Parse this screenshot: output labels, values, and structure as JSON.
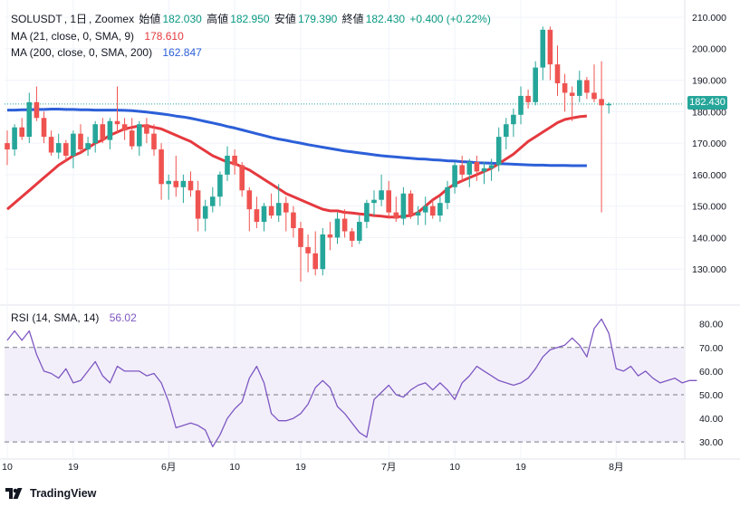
{
  "legend": {
    "symbol": "SOLUSDT",
    "interval": "1日",
    "exchange": "Zoomex",
    "open_label": "始値",
    "open": "182.030",
    "high_label": "高値",
    "high": "182.950",
    "low_label": "安値",
    "low": "179.390",
    "close_label": "終値",
    "close": "182.430",
    "change": "+0.400 (+0.22%)",
    "ma21_label": "MA (21, close, 0, SMA, 9)",
    "ma21_value": "178.610",
    "ma200_label": "MA (200, close, 0, SMA, 200)",
    "ma200_value": "162.847",
    "rsi_label": "RSI (14, SMA, 14)",
    "rsi_value": "56.02"
  },
  "price_tag": "182.430",
  "branding": {
    "text": "TradingView"
  },
  "colors": {
    "up": "#26a69a",
    "down": "#ef5350",
    "ma21": "#e5393f",
    "ma200": "#2c5fd8",
    "rsi": "#7e57c2",
    "rsi_band": "#f2effa"
  },
  "chart_data": [
    {
      "type": "candlestick",
      "title": "SOLUSDT, 1日, Zoomex",
      "y_ticks": [
        "210.000",
        "200.000",
        "190.000",
        "180.000",
        "170.000",
        "160.000",
        "150.000",
        "140.000",
        "130.000"
      ],
      "ylim": [
        120,
        212
      ],
      "x_ticks": [
        {
          "label": "10",
          "index": 0
        },
        {
          "label": "19",
          "index": 9
        },
        {
          "label": "6月",
          "index": 22
        },
        {
          "label": "10",
          "index": 31
        },
        {
          "label": "19",
          "index": 40
        },
        {
          "label": "7月",
          "index": 52
        },
        {
          "label": "10",
          "index": 61
        },
        {
          "label": "19",
          "index": 70
        },
        {
          "label": "8月",
          "index": 83
        }
      ],
      "last_price": 182.43,
      "candles": [
        [
          170,
          174,
          163,
          168
        ],
        [
          168,
          176,
          166,
          175
        ],
        [
          175,
          178,
          171,
          172
        ],
        [
          172,
          186,
          170,
          183
        ],
        [
          183,
          188,
          177,
          178
        ],
        [
          178,
          180,
          170,
          172
        ],
        [
          172,
          174,
          166,
          167
        ],
        [
          167,
          173,
          165,
          170
        ],
        [
          170,
          171,
          164,
          166
        ],
        [
          166,
          174,
          162,
          173
        ],
        [
          173,
          176,
          167,
          168
        ],
        [
          168,
          172,
          166,
          170
        ],
        [
          170,
          177,
          167,
          176
        ],
        [
          176,
          178,
          170,
          171
        ],
        [
          171,
          178,
          168,
          177
        ],
        [
          177,
          188,
          173,
          176
        ],
        [
          176,
          178,
          171,
          174
        ],
        [
          174,
          178,
          168,
          169
        ],
        [
          169,
          177,
          166,
          176
        ],
        [
          176,
          178,
          170,
          173
        ],
        [
          173,
          176,
          166,
          168
        ],
        [
          168,
          170,
          152,
          157
        ],
        [
          157,
          160,
          152,
          158
        ],
        [
          158,
          166,
          153,
          156
        ],
        [
          156,
          160,
          151,
          158
        ],
        [
          158,
          161,
          153,
          155
        ],
        [
          155,
          158,
          142,
          146
        ],
        [
          146,
          152,
          142,
          150
        ],
        [
          150,
          156,
          148,
          153
        ],
        [
          153,
          161,
          150,
          160
        ],
        [
          160,
          169,
          158,
          166
        ],
        [
          166,
          168,
          160,
          163
        ],
        [
          163,
          164,
          153,
          155
        ],
        [
          155,
          156,
          142,
          149
        ],
        [
          149,
          153,
          143,
          145
        ],
        [
          145,
          151,
          142,
          150
        ],
        [
          150,
          154,
          146,
          147
        ],
        [
          147,
          157,
          145,
          151
        ],
        [
          151,
          153,
          142,
          148
        ],
        [
          148,
          150,
          140,
          143
        ],
        [
          143,
          145,
          126,
          137
        ],
        [
          137,
          141,
          129,
          135
        ],
        [
          135,
          142,
          128,
          130
        ],
        [
          130,
          143,
          128,
          141
        ],
        [
          141,
          145,
          136,
          140
        ],
        [
          140,
          148,
          138,
          146
        ],
        [
          146,
          149,
          140,
          142
        ],
        [
          142,
          143,
          137,
          139
        ],
        [
          139,
          147,
          138,
          145
        ],
        [
          145,
          152,
          143,
          151
        ],
        [
          151,
          155,
          147,
          152
        ],
        [
          152,
          160,
          150,
          155
        ],
        [
          155,
          158,
          146,
          148
        ],
        [
          148,
          153,
          145,
          146
        ],
        [
          146,
          156,
          144,
          154
        ],
        [
          154,
          155,
          146,
          147
        ],
        [
          147,
          150,
          144,
          148
        ],
        [
          148,
          153,
          144,
          150
        ],
        [
          150,
          152,
          146,
          147
        ],
        [
          147,
          153,
          145,
          151
        ],
        [
          151,
          158,
          149,
          156
        ],
        [
          156,
          164,
          154,
          163
        ],
        [
          163,
          166,
          158,
          160
        ],
        [
          160,
          165,
          156,
          164
        ],
        [
          164,
          166,
          158,
          161
        ],
        [
          161,
          164,
          157,
          162
        ],
        [
          162,
          165,
          158,
          163
        ],
        [
          163,
          175,
          161,
          172
        ],
        [
          172,
          178,
          168,
          176
        ],
        [
          176,
          181,
          172,
          179
        ],
        [
          179,
          188,
          176,
          185
        ],
        [
          185,
          187,
          181,
          183
        ],
        [
          183,
          196,
          182,
          194
        ],
        [
          194,
          207,
          190,
          206
        ],
        [
          206,
          207,
          190,
          195
        ],
        [
          195,
          201,
          185,
          189
        ],
        [
          189,
          192,
          180,
          186
        ],
        [
          186,
          188,
          177,
          185
        ],
        [
          185,
          193,
          183,
          190
        ],
        [
          190,
          191,
          184,
          186
        ],
        [
          186,
          195,
          183,
          184
        ],
        [
          184,
          196,
          148,
          182
        ],
        [
          182.03,
          182.95,
          179.39,
          182.43
        ]
      ],
      "series": [
        {
          "name": "MA (21, close, 0, SMA, 9)",
          "values": [
            149,
            151,
            153,
            155,
            157,
            159,
            161,
            163,
            164.5,
            166,
            167,
            168.5,
            170,
            171,
            172.5,
            173.5,
            174.5,
            175,
            175.5,
            175.5,
            175,
            174.5,
            173.5,
            172.5,
            171.5,
            170.5,
            169,
            167.5,
            166,
            165,
            164,
            163.5,
            162.5,
            161.5,
            160,
            158.5,
            157,
            155.5,
            154,
            153,
            152,
            151,
            150,
            149,
            148.5,
            148.5,
            148,
            147.8,
            147.5,
            147.3,
            147,
            146.8,
            146.5,
            146.5,
            146.8,
            147,
            148,
            150,
            152,
            153.5,
            155.5,
            157,
            158,
            159,
            160,
            161,
            162,
            163.5,
            165,
            166.5,
            168.5,
            170.5,
            172,
            173.5,
            175,
            176.5,
            177.5,
            178,
            178.4,
            178.61
          ]
        },
        {
          "name": "MA (200, close, 0, SMA, 200)",
          "values": [
            180.5,
            180.5,
            180.6,
            180.6,
            180.7,
            180.7,
            180.8,
            180.8,
            180.7,
            180.7,
            180.6,
            180.6,
            180.5,
            180.5,
            180.5,
            180.5,
            180.4,
            180.3,
            180.1,
            179.9,
            179.6,
            179.3,
            179,
            178.6,
            178.3,
            177.9,
            177.4,
            176.9,
            176.4,
            175.9,
            175.3,
            174.8,
            174.2,
            173.6,
            173,
            172.4,
            171.8,
            171.3,
            170.9,
            170.4,
            170,
            169.5,
            169.1,
            168.7,
            168.3,
            167.9,
            167.5,
            167.2,
            166.9,
            166.6,
            166.3,
            166,
            165.8,
            165.6,
            165.4,
            165.2,
            165,
            164.9,
            164.7,
            164.6,
            164.4,
            164.3,
            164.1,
            164,
            163.8,
            163.7,
            163.6,
            163.5,
            163.4,
            163.3,
            163.2,
            163.1,
            163,
            163,
            162.9,
            162.9,
            162.9,
            162.85,
            162.85,
            162.847
          ]
        }
      ]
    },
    {
      "type": "line",
      "title": "RSI (14, SMA, 14)",
      "y_ticks": [
        "80.00",
        "70.00",
        "60.00",
        "50.00",
        "40.00",
        "30.00"
      ],
      "ylim": [
        27,
        86
      ],
      "bands": [
        70,
        50,
        30
      ],
      "series": [
        {
          "name": "RSI",
          "values": [
            73,
            77,
            73,
            77,
            67,
            60,
            59,
            57,
            61,
            55,
            56,
            60,
            64,
            58,
            55,
            62,
            60,
            60,
            60,
            58,
            59,
            55,
            47,
            36,
            37,
            38,
            37,
            35,
            28,
            33,
            40,
            44,
            47,
            57,
            62,
            55,
            42,
            39,
            39,
            40,
            42,
            46,
            53,
            56,
            53,
            45,
            42,
            38,
            34,
            32,
            48,
            51,
            54,
            50,
            49,
            52,
            54,
            55,
            52,
            55,
            52,
            48,
            55,
            58,
            62,
            60,
            58,
            56,
            55,
            54,
            55,
            57,
            61,
            66,
            69,
            70,
            71,
            74,
            71,
            66,
            78,
            82,
            76,
            61,
            60,
            62,
            58,
            60,
            57,
            55,
            56,
            57,
            55,
            56,
            56.02
          ]
        }
      ]
    }
  ]
}
